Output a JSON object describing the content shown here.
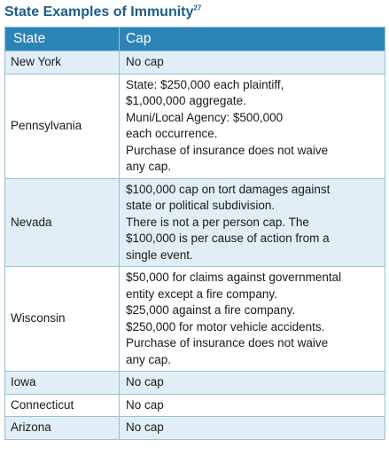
{
  "title": "State Examples of Immunity",
  "title_footnote": "27",
  "headers": {
    "state": "State",
    "cap": "Cap"
  },
  "rows": [
    {
      "state": "New York",
      "cap": [
        "No cap"
      ]
    },
    {
      "state": "Pennsylvania",
      "cap": [
        "State: $250,000 each plaintiff,",
        "$1,000,000 aggregate.",
        "Muni/Local Agency: $500,000",
        "each occurrence.",
        "Purchase of insurance does not waive",
        "any cap."
      ]
    },
    {
      "state": "Nevada",
      "cap": [
        "$100,000 cap on tort damages against",
        "state or political subdivision.",
        "There is not a per person cap. The",
        "$100,000 is per cause of action from a",
        "single event."
      ]
    },
    {
      "state": "Wisconsin",
      "cap": [
        "$50,000 for claims against governmental",
        "entity except a fire company.",
        "$25,000 against a fire company.",
        "$250,000 for motor vehicle accidents.",
        "Purchase of insurance does not waive",
        "any cap."
      ]
    },
    {
      "state": "Iowa",
      "cap": [
        "No cap"
      ]
    },
    {
      "state": "Connecticut",
      "cap": [
        "No cap"
      ]
    },
    {
      "state": "Arizona",
      "cap": [
        "No cap"
      ]
    }
  ]
}
